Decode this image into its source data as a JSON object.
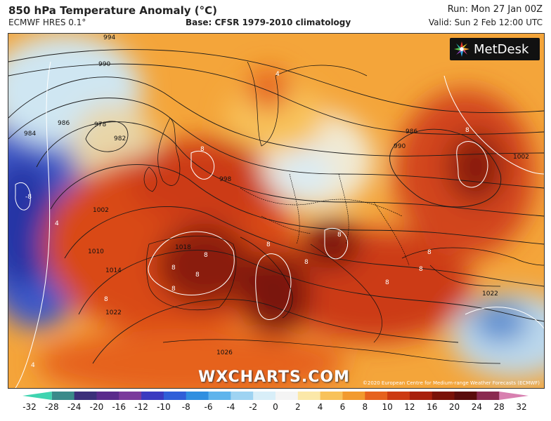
{
  "header": {
    "title": "850 hPa Temperature Anomaly (°C)",
    "model": "ECMWF HRES 0.1°",
    "base": "Base: CFSR 1979-2010 climatology",
    "run": "Run: Mon 27 Jan 00Z",
    "valid": "Valid: Sun 2 Feb 12:00 UTC"
  },
  "map": {
    "brand": "MetDesk",
    "watermark": "WXCHARTS.COM",
    "credit": "©2020 European Centre for Medium-range Weather Forecasts (ECMWF)",
    "isobar_labels": [
      "994",
      "990",
      "986",
      "978",
      "982",
      "984",
      "998",
      "1002",
      "1010",
      "1014",
      "1018",
      "1022",
      "1026",
      "986",
      "990",
      "1002",
      "1022"
    ],
    "anomaly_labels": [
      "8",
      "8",
      "8",
      "8",
      "8",
      "8",
      "8",
      "8",
      "8",
      "8",
      "8",
      "-8",
      "4",
      "4",
      "8",
      "4",
      "8"
    ]
  },
  "colorbar": {
    "ticks": [
      "-32",
      "-28",
      "-24",
      "-20",
      "-16",
      "-12",
      "-10",
      "-8",
      "-6",
      "-4",
      "-2",
      "0",
      "2",
      "4",
      "6",
      "8",
      "10",
      "12",
      "16",
      "20",
      "24",
      "28",
      "32"
    ],
    "colors": [
      "#3fd4b0",
      "#3a8a8a",
      "#3b2f7a",
      "#5a2a8c",
      "#7a3a9c",
      "#3a3ac0",
      "#2f5fd8",
      "#2f8fe0",
      "#5fb4ec",
      "#9ed3f2",
      "#d8eef8",
      "#f4f4f4",
      "#fbe8a8",
      "#f8c25a",
      "#f29a2e",
      "#e6621e",
      "#cc3a12",
      "#a8200c",
      "#7a1208",
      "#5a0c0c",
      "#8a2a50",
      "#d880b0"
    ]
  }
}
